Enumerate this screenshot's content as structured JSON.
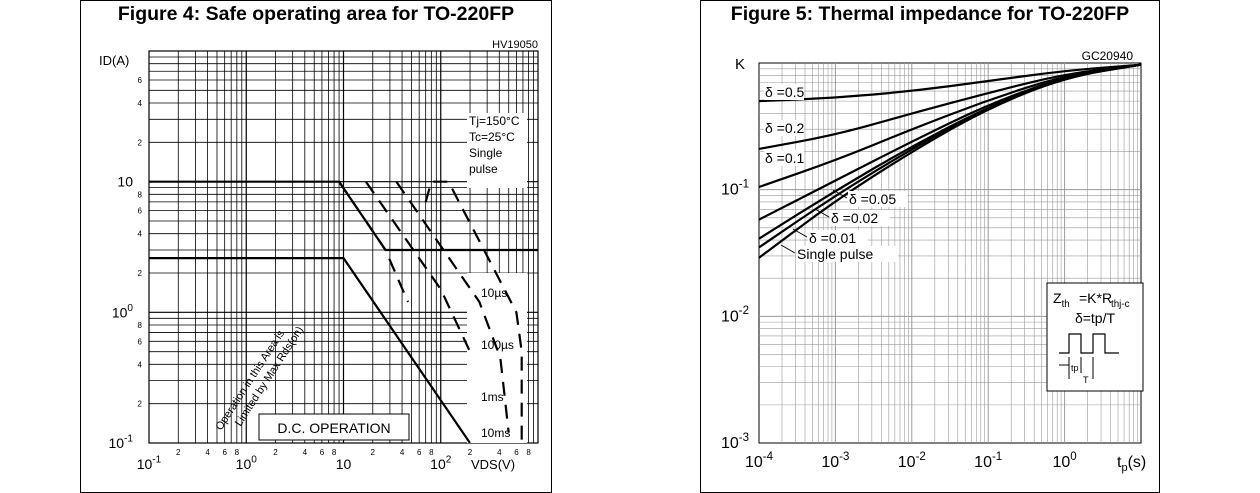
{
  "chart_data": [
    {
      "type": "line",
      "title": "Figure 4: Safe operating area for TO-220FP",
      "code": "HV19050",
      "xscale": "log",
      "yscale": "log",
      "xlim": [
        0.1,
        1000
      ],
      "ylim": [
        0.1,
        100
      ],
      "ylabel": "ID(A)",
      "xlabel": "VDS(V)",
      "grid": true,
      "y_major_ticks": [
        {
          "v": 10,
          "main": "10",
          "sup": ""
        },
        {
          "v": 1,
          "main": "10",
          "sup": "0"
        },
        {
          "v": 0.1,
          "main": "10",
          "sup": "-1"
        }
      ],
      "y_minor_ticks": [
        {
          "v": 0.2,
          "t": "2"
        },
        {
          "v": 0.4,
          "t": "4"
        },
        {
          "v": 0.6,
          "t": "6"
        },
        {
          "v": 0.8,
          "t": "8"
        },
        {
          "v": 2,
          "t": "2"
        },
        {
          "v": 4,
          "t": "4"
        },
        {
          "v": 6,
          "t": "6"
        },
        {
          "v": 8,
          "t": "8"
        },
        {
          "v": 20,
          "t": "2"
        },
        {
          "v": 40,
          "t": "4"
        },
        {
          "v": 60,
          "t": "6"
        }
      ],
      "x_major_ticks": [
        {
          "v": 0.1,
          "main": "10",
          "sup": "-1"
        },
        {
          "v": 1,
          "main": "10",
          "sup": "0"
        },
        {
          "v": 10,
          "main": "10",
          "sup": ""
        },
        {
          "v": 100,
          "main": "10",
          "sup": "2"
        }
      ],
      "x_minor_ticks": [
        {
          "v": 0.2,
          "t": "2"
        },
        {
          "v": 0.4,
          "t": "4"
        },
        {
          "v": 0.6,
          "t": "6"
        },
        {
          "v": 0.8,
          "t": "8"
        },
        {
          "v": 2,
          "t": "2"
        },
        {
          "v": 4,
          "t": "4"
        },
        {
          "v": 6,
          "t": "6"
        },
        {
          "v": 8,
          "t": "8"
        },
        {
          "v": 20,
          "t": "2"
        },
        {
          "v": 40,
          "t": "4"
        },
        {
          "v": 60,
          "t": "6"
        },
        {
          "v": 80,
          "t": "8"
        },
        {
          "v": 200,
          "t": "2"
        },
        {
          "v": 400,
          "t": "4"
        },
        {
          "v": 600,
          "t": "6"
        },
        {
          "v": 800,
          "t": "8"
        }
      ],
      "conditions": [
        "Tj=150°C",
        "Tc=25°C",
        "Single",
        "pulse"
      ],
      "rds_note": [
        "Operation in this Area is",
        "Limited by Max Rds(on)"
      ],
      "series": [
        {
          "name": "10µs",
          "style": "solid",
          "points": [
            [
              0.1,
              10
            ],
            [
              9,
              10
            ],
            [
              27,
              3
            ],
            [
              1000,
              3
            ]
          ]
        },
        {
          "name": "100µs",
          "style": "dashed",
          "points": [
            [
              9,
              10
            ],
            [
              27,
              3
            ],
            [
              46,
              1.2
            ]
          ]
        },
        {
          "name": "1ms",
          "style": "dashed",
          "points": [
            [
              17,
              10
            ],
            [
              100,
              1.5
            ],
            [
              200,
              0.5
            ]
          ]
        },
        {
          "name": "10ms",
          "style": "dashed",
          "points": [
            [
              35,
              10
            ],
            [
              250,
              1.2
            ],
            [
              410,
              0.45
            ],
            [
              500,
              0.12
            ]
          ]
        },
        {
          "name": "D.C. OPERATION",
          "style": "solid",
          "points": [
            [
              0.1,
              2.6
            ],
            [
              10,
              2.6
            ],
            [
              200,
              0.1
            ]
          ]
        },
        {
          "name": "",
          "style": "dashed",
          "points": [
            [
              70,
              7
            ],
            [
              80,
              10
            ],
            [
              120,
              10
            ],
            [
              600,
              1.0
            ],
            [
              680,
              0.5
            ],
            [
              680,
              0.1
            ]
          ]
        }
      ],
      "curve_labels": [
        "10µs",
        "100µs",
        "1ms",
        "10ms"
      ],
      "dc_label": "D.C. OPERATION"
    },
    {
      "type": "line",
      "title": "Figure 5: Thermal impedance for TO-220FP",
      "code": "GC20940",
      "xscale": "log",
      "yscale": "log",
      "xlim": [
        0.0001,
        10
      ],
      "ylim": [
        0.001,
        1
      ],
      "ylabel": "K",
      "xlabel": "tp(s)",
      "grid": true,
      "x_major_ticks": [
        {
          "v": 0.0001,
          "main": "10",
          "sup": "-4"
        },
        {
          "v": 0.001,
          "main": "10",
          "sup": "-3"
        },
        {
          "v": 0.01,
          "main": "10",
          "sup": "-2"
        },
        {
          "v": 0.1,
          "main": "10",
          "sup": "-1"
        },
        {
          "v": 1,
          "main": "10",
          "sup": "0"
        }
      ],
      "y_major_ticks": [
        {
          "v": 0.1,
          "main": "10",
          "sup": "-1"
        },
        {
          "v": 0.01,
          "main": "10",
          "sup": "-2"
        },
        {
          "v": 0.001,
          "main": "10",
          "sup": "-3"
        }
      ],
      "series": [
        {
          "name": "δ =0.5",
          "points": [
            [
              0.0001,
              0.5
            ],
            [
              0.001,
              0.53
            ],
            [
              0.01,
              0.6
            ],
            [
              0.1,
              0.72
            ],
            [
              1,
              0.87
            ],
            [
              10,
              0.97
            ]
          ]
        },
        {
          "name": "δ =0.2",
          "points": [
            [
              0.0001,
              0.21
            ],
            [
              0.001,
              0.27
            ],
            [
              0.01,
              0.4
            ],
            [
              0.1,
              0.58
            ],
            [
              1,
              0.82
            ],
            [
              10,
              0.97
            ]
          ]
        },
        {
          "name": "δ =0.1",
          "points": [
            [
              0.0001,
              0.105
            ],
            [
              0.001,
              0.17
            ],
            [
              0.01,
              0.3
            ],
            [
              0.1,
              0.51
            ],
            [
              1,
              0.8
            ],
            [
              10,
              0.97
            ]
          ]
        },
        {
          "name": "δ =0.05",
          "points": [
            [
              0.0001,
              0.058
            ],
            [
              0.001,
              0.118
            ],
            [
              0.01,
              0.24
            ],
            [
              0.1,
              0.47
            ],
            [
              1,
              0.78
            ],
            [
              10,
              0.97
            ]
          ]
        },
        {
          "name": "δ =0.02",
          "points": [
            [
              0.0001,
              0.041
            ],
            [
              0.001,
              0.098
            ],
            [
              0.01,
              0.22
            ],
            [
              0.1,
              0.45
            ],
            [
              1,
              0.78
            ],
            [
              10,
              0.97
            ]
          ]
        },
        {
          "name": "δ =0.01",
          "points": [
            [
              0.0001,
              0.035
            ],
            [
              0.001,
              0.09
            ],
            [
              0.01,
              0.21
            ],
            [
              0.1,
              0.45
            ],
            [
              1,
              0.78
            ],
            [
              10,
              0.97
            ]
          ]
        },
        {
          "name": "Single pulse",
          "points": [
            [
              0.0001,
              0.029
            ],
            [
              0.001,
              0.082
            ],
            [
              0.01,
              0.2
            ],
            [
              0.1,
              0.44
            ],
            [
              1,
              0.77
            ],
            [
              10,
              0.97
            ]
          ]
        }
      ],
      "inset": {
        "line1": "Zth=K*Rthj-c",
        "line2": "δ=tp/T",
        "tp": "tp",
        "T": "T"
      }
    }
  ]
}
